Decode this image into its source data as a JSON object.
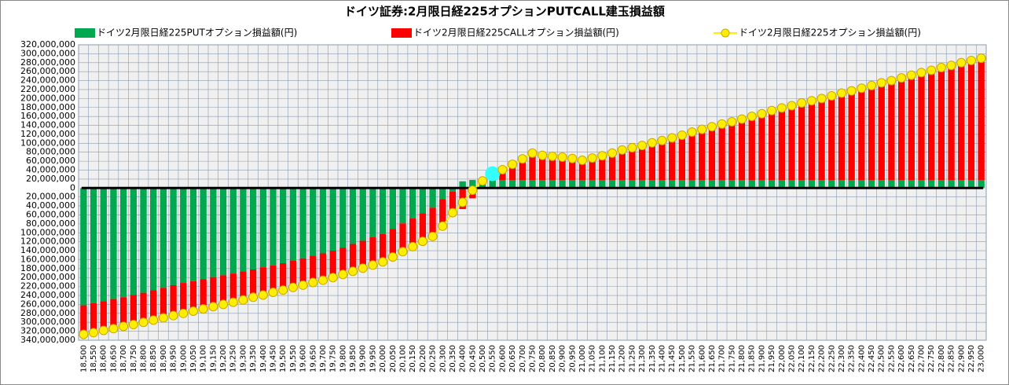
{
  "chart_data": {
    "type": "stacked_bar_line",
    "title": "ドイツ証券:2月限日経225オプションPUTCALL建玉損益額",
    "categories": [
      "18,500",
      "18,550",
      "18,600",
      "18,650",
      "18,700",
      "18,750",
      "18,800",
      "18,850",
      "18,900",
      "18,950",
      "19,000",
      "19,050",
      "19,100",
      "19,150",
      "19,200",
      "19,250",
      "19,300",
      "19,350",
      "19,400",
      "19,450",
      "19,500",
      "19,550",
      "19,600",
      "19,650",
      "19,700",
      "19,750",
      "19,800",
      "19,850",
      "19,900",
      "19,950",
      "20,000",
      "20,050",
      "20,100",
      "20,150",
      "20,200",
      "20,250",
      "20,300",
      "20,350",
      "20,400",
      "20,450",
      "20,500",
      "20,550",
      "20,600",
      "20,650",
      "20,700",
      "20,750",
      "20,800",
      "20,850",
      "20,900",
      "20,950",
      "21,000",
      "21,050",
      "21,100",
      "21,150",
      "21,200",
      "21,250",
      "21,300",
      "21,350",
      "21,400",
      "21,450",
      "21,500",
      "21,550",
      "21,600",
      "21,650",
      "21,700",
      "21,750",
      "21,800",
      "21,850",
      "21,900",
      "21,950",
      "22,000",
      "22,050",
      "22,100",
      "22,150",
      "22,200",
      "22,250",
      "22,300",
      "22,350",
      "22,400",
      "22,450",
      "22,500",
      "22,550",
      "22,600",
      "22,650",
      "22,700",
      "22,750",
      "22,800",
      "22,850",
      "22,900",
      "22,950",
      "23,000"
    ],
    "series": [
      {
        "name": "ドイツ2月限日経225PUTオプション損益額(円)",
        "color": "#00a850",
        "kind": "bar",
        "values": [
          -262000000,
          -257000000,
          -253000000,
          -248000000,
          -244000000,
          -239000000,
          -234000000,
          -228000000,
          -223000000,
          -217000000,
          -212000000,
          -208000000,
          -204000000,
          -199000000,
          -195000000,
          -191000000,
          -186000000,
          -182000000,
          -177000000,
          -173000000,
          -168000000,
          -162000000,
          -157000000,
          -151000000,
          -146000000,
          -140000000,
          -133000000,
          -125000000,
          -118000000,
          -110000000,
          -103000000,
          -91000000,
          -79000000,
          -68000000,
          -56000000,
          -44000000,
          -25000000,
          -8000000,
          15000000,
          18000000,
          18000000,
          18000000,
          18000000,
          18000000,
          18000000,
          18000000,
          18000000,
          18000000,
          18000000,
          18000000,
          18000000,
          18000000,
          18000000,
          18000000,
          18000000,
          18000000,
          18000000,
          18000000,
          18000000,
          18000000,
          18000000,
          18000000,
          18000000,
          18000000,
          18000000,
          18000000,
          18000000,
          18000000,
          18000000,
          18000000,
          18000000,
          18000000,
          18000000,
          18000000,
          18000000,
          18000000,
          18000000,
          18000000,
          18000000,
          18000000,
          18000000,
          18000000,
          18000000,
          18000000,
          18000000,
          18000000,
          18000000,
          18000000,
          18000000,
          18000000,
          18000000
        ]
      },
      {
        "name": "ドイツ2月限日経225CALLオプション損益額(円)",
        "color": "#ff0000",
        "kind": "bar",
        "values": [
          -65000000,
          -66000000,
          -65000000,
          -66000000,
          -65000000,
          -66000000,
          -66000000,
          -67000000,
          -67000000,
          -68000000,
          -68000000,
          -67000000,
          -66000000,
          -66000000,
          -65000000,
          -64000000,
          -64000000,
          -62000000,
          -62000000,
          -60000000,
          -60000000,
          -60000000,
          -60000000,
          -60000000,
          -60000000,
          -60000000,
          -60000000,
          -61000000,
          -61000000,
          -62000000,
          -62000000,
          -63000000,
          -63000000,
          -63000000,
          -63000000,
          -64000000,
          -60000000,
          -47000000,
          -47000000,
          -23000000,
          -2000000,
          14000000,
          23000000,
          35000000,
          47000000,
          60000000,
          55000000,
          53000000,
          51000000,
          48000000,
          44000000,
          49000000,
          54000000,
          60000000,
          67000000,
          72000000,
          77000000,
          83000000,
          88000000,
          94000000,
          100000000,
          107000000,
          113000000,
          119000000,
          125000000,
          130000000,
          136000000,
          142000000,
          148000000,
          155000000,
          161000000,
          166000000,
          172000000,
          177000000,
          182000000,
          188000000,
          194000000,
          199000000,
          205000000,
          211000000,
          217000000,
          222000000,
          228000000,
          234000000,
          240000000,
          245000000,
          251000000,
          256000000,
          262000000,
          267000000,
          272000000
        ]
      },
      {
        "name": "ドイツ2月限日経225オプション損益額(円)",
        "color": "#ffee00",
        "kind": "line",
        "values": [
          -327000000,
          -323000000,
          -318000000,
          -314000000,
          -309000000,
          -305000000,
          -300000000,
          -295000000,
          -290000000,
          -285000000,
          -280000000,
          -275000000,
          -270000000,
          -265000000,
          -260000000,
          -255000000,
          -250000000,
          -244000000,
          -239000000,
          -233000000,
          -228000000,
          -222000000,
          -217000000,
          -211000000,
          -206000000,
          -200000000,
          -193000000,
          -186000000,
          -179000000,
          -172000000,
          -165000000,
          -154000000,
          -142000000,
          -131000000,
          -119000000,
          -108000000,
          -85000000,
          -55000000,
          -32000000,
          -5000000,
          16000000,
          32000000,
          41000000,
          53000000,
          65000000,
          78000000,
          73000000,
          71000000,
          69000000,
          66000000,
          62000000,
          67000000,
          72000000,
          78000000,
          85000000,
          90000000,
          95000000,
          101000000,
          106000000,
          112000000,
          118000000,
          125000000,
          131000000,
          137000000,
          143000000,
          148000000,
          154000000,
          160000000,
          166000000,
          173000000,
          179000000,
          184000000,
          190000000,
          195000000,
          200000000,
          206000000,
          212000000,
          217000000,
          223000000,
          229000000,
          235000000,
          240000000,
          246000000,
          252000000,
          258000000,
          263000000,
          269000000,
          274000000,
          280000000,
          285000000,
          290000000
        ],
        "highlight": {
          "index": 41,
          "color": "#33ffff"
        }
      }
    ],
    "ylim": [
      -340000000,
      320000000
    ],
    "yticks": [
      {
        "value": 320000000,
        "label": "320,000,000"
      },
      {
        "value": 300000000,
        "label": "300,000,000"
      },
      {
        "value": 280000000,
        "label": "280,000,000"
      },
      {
        "value": 260000000,
        "label": "260,000,000"
      },
      {
        "value": 240000000,
        "label": "240,000,000"
      },
      {
        "value": 220000000,
        "label": "220,000,000"
      },
      {
        "value": 200000000,
        "label": "200,000,000"
      },
      {
        "value": 180000000,
        "label": "180,000,000"
      },
      {
        "value": 160000000,
        "label": "160,000,000"
      },
      {
        "value": 140000000,
        "label": "140,000,000"
      },
      {
        "value": 120000000,
        "label": "120,000,000"
      },
      {
        "value": 100000000,
        "label": "100,000,000"
      },
      {
        "value": 80000000,
        "label": "80,000,000"
      },
      {
        "value": 60000000,
        "label": "60,000,000"
      },
      {
        "value": 40000000,
        "label": "40,000,000"
      },
      {
        "value": 20000000,
        "label": "20,000,000"
      },
      0,
      {
        "value": -20000000,
        "label": "20,000,000"
      },
      {
        "value": -40000000,
        "label": "40,000,000"
      },
      {
        "value": -60000000,
        "label": "60,000,000"
      },
      {
        "value": -80000000,
        "label": "80,000,000"
      },
      {
        "value": -100000000,
        "label": "100,000,000"
      },
      {
        "value": -120000000,
        "label": "120,000,000"
      },
      {
        "value": -140000000,
        "label": "140,000,000"
      },
      {
        "value": -160000000,
        "label": "160,000,000"
      },
      {
        "value": -180000000,
        "label": "180,000,000"
      },
      {
        "value": -200000000,
        "label": "200,000,000"
      },
      {
        "value": -220000000,
        "label": "220,000,000"
      },
      {
        "value": -240000000,
        "label": "240,000,000"
      },
      {
        "value": -260000000,
        "label": "260,000,000"
      },
      {
        "value": -280000000,
        "label": "280,000,000"
      },
      {
        "value": -300000000,
        "label": "300,000,000"
      },
      {
        "value": -320000000,
        "label": "320,000,000"
      },
      {
        "value": -340000000,
        "label": "340,000,000"
      }
    ],
    "grid": true,
    "negative_label_color": "#ff0000"
  }
}
